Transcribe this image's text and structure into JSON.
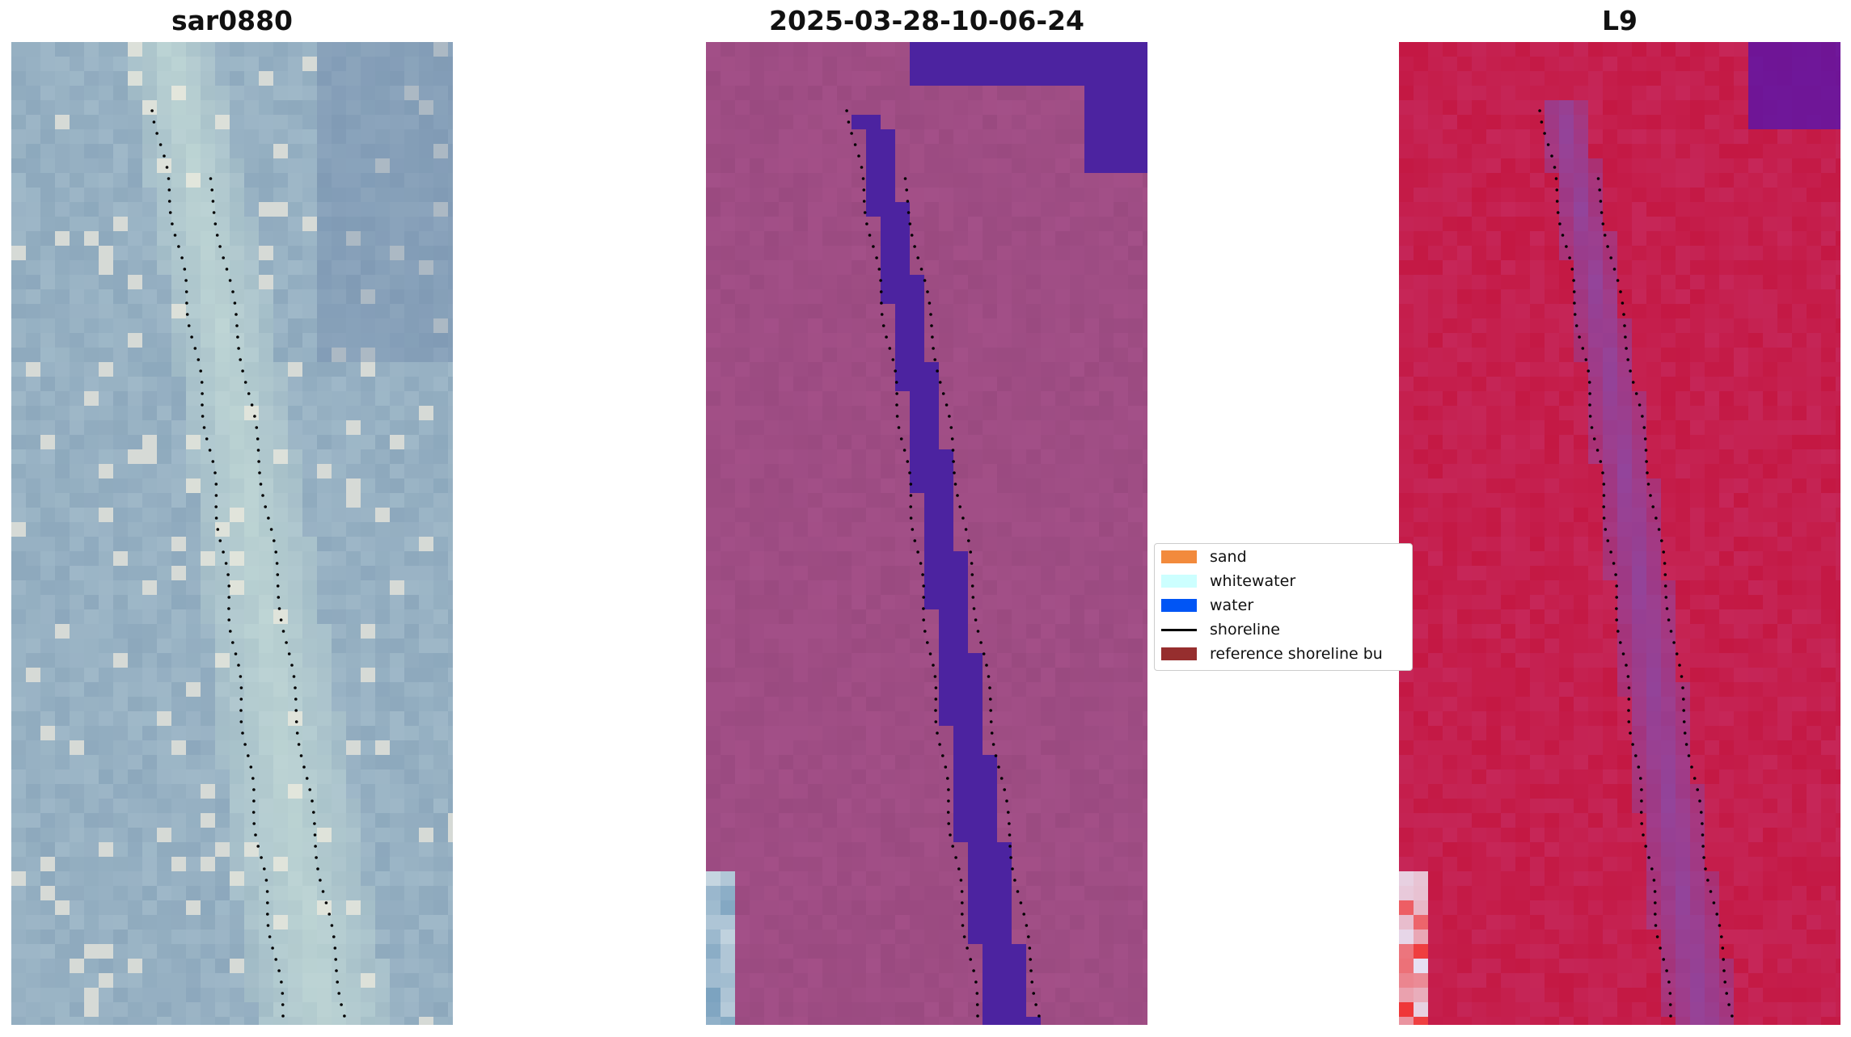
{
  "panels": [
    {
      "title": "sar0880",
      "style": "rgb"
    },
    {
      "title": "2025-03-28-10-06-24",
      "style": "classified"
    },
    {
      "title": "L9",
      "style": "index"
    }
  ],
  "legend": {
    "items": [
      {
        "label": "sand",
        "color": "#f28a3c",
        "kind": "patch"
      },
      {
        "label": "whitewater",
        "color": "#ccffff",
        "kind": "patch"
      },
      {
        "label": "water",
        "color": "#0055f5",
        "kind": "patch"
      },
      {
        "label": "shoreline",
        "color": "#000000",
        "kind": "line"
      },
      {
        "label": "reference shoreline bu",
        "color": "#962e2e",
        "kind": "patch"
      }
    ]
  },
  "colors": {
    "rgb_base": "#9fb8c8",
    "rgb_beach": "#cfe5dc",
    "classified_base": "#9a4a80",
    "classified_water": "#4c23a0",
    "index_base": "#c41843",
    "index_channel": "#8a4aa8"
  }
}
